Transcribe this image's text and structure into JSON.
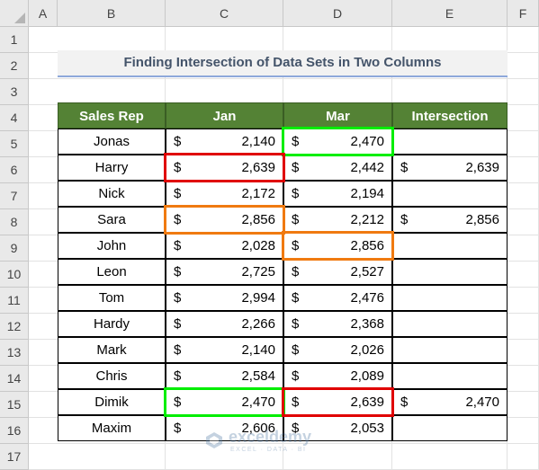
{
  "columns": [
    "A",
    "B",
    "C",
    "D",
    "E",
    "F"
  ],
  "rows": [
    "1",
    "2",
    "3",
    "4",
    "5",
    "6",
    "7",
    "8",
    "9",
    "10",
    "11",
    "12",
    "13",
    "14",
    "15",
    "16",
    "17"
  ],
  "title": "Finding Intersection of Data Sets in Two Columns",
  "headers": {
    "rep": "Sales Rep",
    "jan": "Jan",
    "mar": "Mar",
    "intersection": "Intersection"
  },
  "currency": "$",
  "records": [
    {
      "rep": "Jonas",
      "jan": "2,140",
      "mar": "2,470",
      "intersection": ""
    },
    {
      "rep": "Harry",
      "jan": "2,639",
      "mar": "2,442",
      "intersection": "2,639"
    },
    {
      "rep": "Nick",
      "jan": "2,172",
      "mar": "2,194",
      "intersection": ""
    },
    {
      "rep": "Sara",
      "jan": "2,856",
      "mar": "2,212",
      "intersection": "2,856"
    },
    {
      "rep": "John",
      "jan": "2,028",
      "mar": "2,856",
      "intersection": ""
    },
    {
      "rep": "Leon",
      "jan": "2,725",
      "mar": "2,527",
      "intersection": ""
    },
    {
      "rep": "Tom",
      "jan": "2,994",
      "mar": "2,476",
      "intersection": ""
    },
    {
      "rep": "Hardy",
      "jan": "2,266",
      "mar": "2,368",
      "intersection": ""
    },
    {
      "rep": "Mark",
      "jan": "2,140",
      "mar": "2,026",
      "intersection": ""
    },
    {
      "rep": "Chris",
      "jan": "2,584",
      "mar": "2,089",
      "intersection": ""
    },
    {
      "rep": "Dimik",
      "jan": "2,470",
      "mar": "2,639",
      "intersection": "2,470"
    },
    {
      "rep": "Maxim",
      "jan": "2,606",
      "mar": "2,053",
      "intersection": ""
    }
  ],
  "highlight_colors": {
    "green": "#00ee00",
    "red": "#e00000",
    "orange": "#f07a10"
  },
  "watermark": {
    "name": "exceldemy",
    "tagline": "EXCEL · DATA · BI"
  }
}
